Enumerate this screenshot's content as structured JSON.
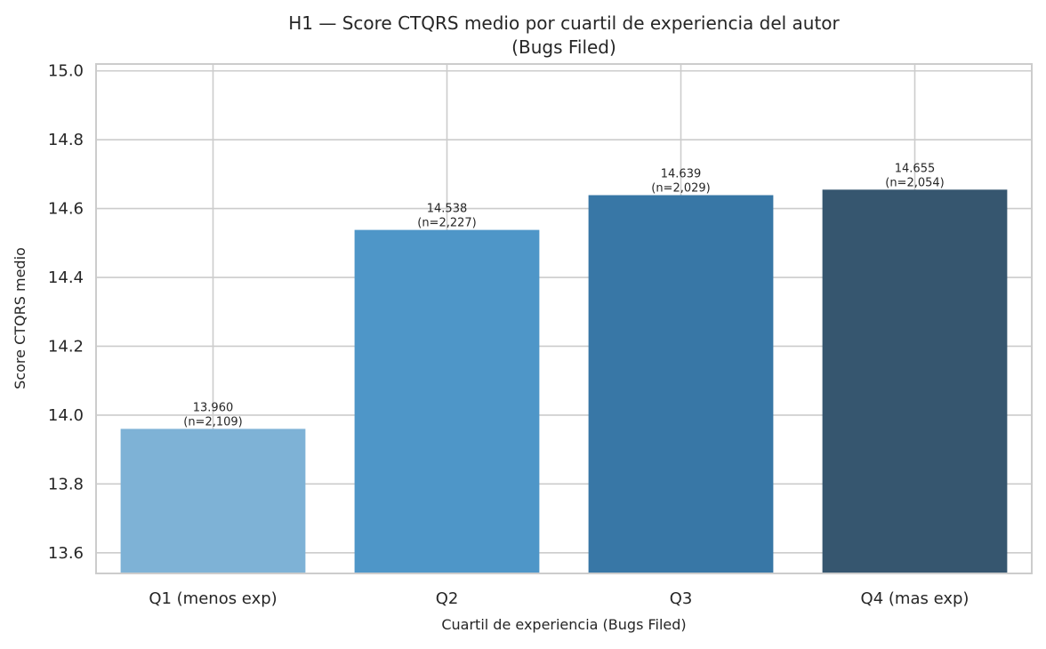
{
  "chart_data": {
    "type": "bar",
    "title": [
      "H1 — Score CTQRS medio por cuartil de experiencia del autor",
      "(Bugs Filed)"
    ],
    "xlabel": "Cuartil de experiencia (Bugs Filed)",
    "ylabel": "Score CTQRS medio",
    "categories": [
      "Q1 (menos exp)",
      "Q2",
      "Q3",
      "Q4 (mas exp)"
    ],
    "values": [
      13.96,
      14.538,
      14.639,
      14.655
    ],
    "value_labels": [
      "13.960",
      "14.538",
      "14.639",
      "14.655"
    ],
    "n_labels": [
      "(n=2,109)",
      "(n=2,227)",
      "(n=2,029)",
      "(n=2,054)"
    ],
    "bar_colors": [
      "#7eb2d6",
      "#4e96c8",
      "#3877a6",
      "#36566f"
    ],
    "ylim": [
      13.54,
      15.02
    ],
    "yticks": [
      13.6,
      13.8,
      14.0,
      14.2,
      14.4,
      14.6,
      14.8,
      15.0
    ],
    "ytick_labels": [
      "13.6",
      "13.8",
      "14.0",
      "14.2",
      "14.4",
      "14.6",
      "14.8",
      "15.0"
    ],
    "grid": true,
    "grid_color": "#cccccc",
    "axes_edge_color": "#cccccc",
    "background": "#ffffff"
  }
}
